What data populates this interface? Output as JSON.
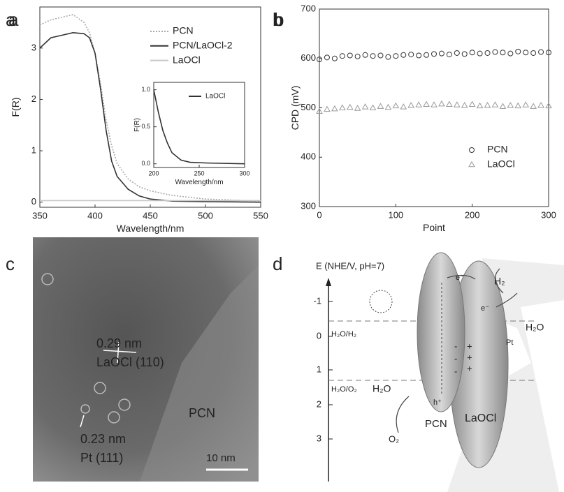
{
  "chart_data": [
    {
      "type": "line",
      "panel": "a",
      "x_label": "Wavelength/nm",
      "y_label": "F(R)",
      "x": [
        350,
        355,
        360,
        370,
        380,
        390,
        395,
        400,
        405,
        410,
        415,
        420,
        430,
        440,
        450,
        470,
        500,
        550
      ],
      "series": [
        {
          "name": "PCN",
          "color": "#aaaaaa",
          "style": "dotted",
          "values": [
            3.45,
            3.5,
            3.55,
            3.6,
            3.65,
            3.5,
            3.3,
            2.9,
            2.3,
            1.6,
            1.1,
            0.75,
            0.45,
            0.3,
            0.22,
            0.13,
            0.06,
            0.02
          ]
        },
        {
          "name": "PCN/LaOCl-2",
          "color": "#333333",
          "style": "solid",
          "values": [
            3.0,
            3.1,
            3.2,
            3.25,
            3.3,
            3.28,
            3.2,
            2.9,
            2.2,
            1.4,
            0.8,
            0.5,
            0.25,
            0.12,
            0.06,
            0.02,
            0.01,
            0.0
          ]
        },
        {
          "name": "LaOCl",
          "color": "#c8c8c8",
          "style": "solid",
          "values": [
            0.03,
            0.03,
            0.03,
            0.03,
            0.03,
            0.03,
            0.03,
            0.03,
            0.03,
            0.03,
            0.03,
            0.03,
            0.03,
            0.03,
            0.03,
            0.03,
            0.03,
            0.03
          ]
        }
      ],
      "xlim": [
        350,
        550
      ],
      "xticks": [
        350,
        400,
        450,
        500,
        550
      ],
      "ylim": [
        -0.1,
        3.8
      ],
      "yticks": [
        0,
        1,
        2,
        3
      ]
    },
    {
      "type": "line",
      "x_label": "Wavelength/nm",
      "y_label": "F(R)",
      "x": [
        200,
        205,
        210,
        215,
        220,
        230,
        240,
        260,
        300
      ],
      "series": [
        {
          "name": "LaOCl",
          "color": "#333333",
          "style": "solid",
          "values": [
            1.0,
            0.7,
            0.45,
            0.28,
            0.15,
            0.05,
            0.02,
            0.01,
            0.0
          ]
        }
      ],
      "xlim": [
        200,
        300
      ],
      "xticks": [
        200,
        250,
        300
      ],
      "ylim": [
        -0.05,
        1.1
      ],
      "yticks": [
        {
          "value": 0,
          "label": "0.0"
        },
        0.5,
        {
          "value": 1,
          "label": "1.0"
        }
      ]
    },
    {
      "type": "scatter",
      "panel": "b",
      "x_label": "Point",
      "y_label": "CPD (mV)",
      "x": [
        0,
        10,
        20,
        30,
        40,
        50,
        60,
        70,
        80,
        90,
        100,
        110,
        120,
        130,
        140,
        150,
        160,
        170,
        180,
        190,
        200,
        210,
        220,
        230,
        240,
        250,
        260,
        270,
        280,
        290,
        300
      ],
      "series": [
        {
          "name": "PCN",
          "color": "#333333",
          "marker": "circle",
          "values": [
            598,
            602,
            600,
            605,
            606,
            604,
            607,
            605,
            606,
            603,
            605,
            607,
            608,
            606,
            607,
            609,
            610,
            608,
            611,
            609,
            612,
            610,
            611,
            613,
            612,
            610,
            614,
            612,
            611,
            613,
            612
          ]
        },
        {
          "name": "LaOCl",
          "color": "#999999",
          "marker": "triangle",
          "values": [
            493,
            497,
            498,
            500,
            501,
            499,
            502,
            500,
            503,
            501,
            504,
            502,
            505,
            506,
            507,
            506,
            508,
            507,
            506,
            505,
            507,
            504,
            505,
            506,
            503,
            505,
            504,
            506,
            503,
            505,
            504
          ]
        }
      ],
      "xlim": [
        0,
        300
      ],
      "xticks": [
        0,
        100,
        200,
        300
      ],
      "ylim": [
        300,
        700
      ],
      "yticks": [
        300,
        400,
        500,
        600,
        700
      ]
    }
  ],
  "panel_c": {
    "label": "c",
    "texts": [
      "0.29 nm",
      "LaOCl (110)",
      "PCN",
      "0.23 nm",
      "Pt (111)",
      "10 nm"
    ]
  },
  "panel_d": {
    "label": "d",
    "axis_title": "E (NHE/V, pH=7)",
    "axis_ticks": [
      "-1",
      "0",
      "1",
      "2",
      "3"
    ],
    "texts": [
      "H₂",
      "H₂O",
      "Pt",
      "e⁻",
      "e⁻",
      "H₂O/H₂",
      "H₂O/O₂",
      "H₂O",
      "h⁺",
      "PCN",
      "LaOCl",
      "O₂",
      "-",
      "-",
      "-",
      "+",
      "+",
      "+"
    ]
  }
}
